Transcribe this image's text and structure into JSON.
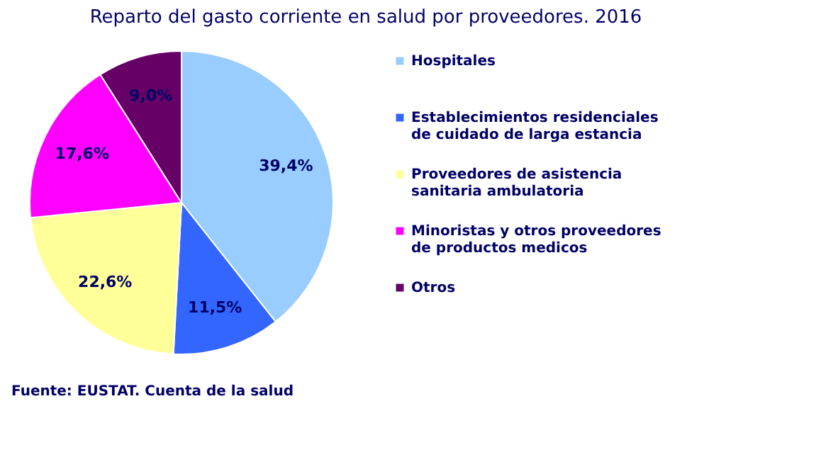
{
  "chart_data": {
    "type": "pie",
    "title": "Reparto del gasto corriente en salud por proveedores. 2016",
    "categories": [
      "Hospitales",
      "Establecimientos residenciales de cuidado de larga estancia",
      "Proveedores de asistencia sanitaria ambulatoria",
      "Minoristas y otros proveedores de productos medicos",
      "Otros"
    ],
    "values": [
      39.4,
      11.5,
      22.6,
      17.6,
      9.0
    ],
    "value_labels": [
      "39,4%",
      "11,5%",
      "22,6%",
      "17,6%",
      "9,0%"
    ],
    "colors": [
      "#99ccff",
      "#3366ff",
      "#ffff99",
      "#ff00ff",
      "#660066"
    ],
    "legend": "right",
    "annotations": [
      "Fuente: EUSTAT. Cuenta de la salud"
    ]
  }
}
